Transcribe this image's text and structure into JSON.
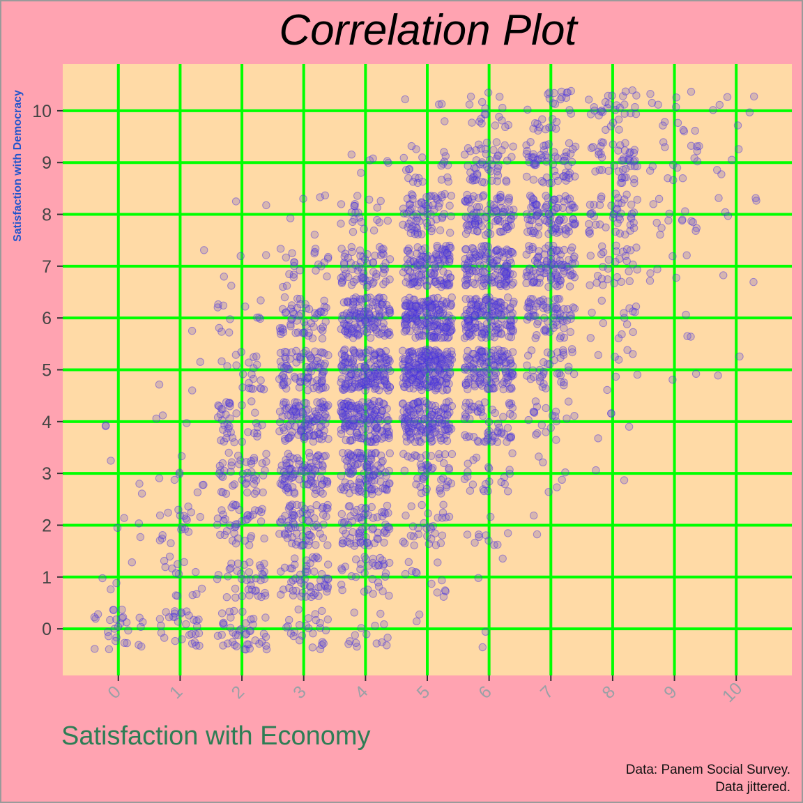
{
  "chart_data": {
    "type": "scatter",
    "title": "Correlation Plot",
    "xlabel": "Satisfaction with Economy",
    "ylabel": "Satisfaction with Democracy",
    "caption": [
      "Data: Panem Social Survey.",
      "Data jittered."
    ],
    "x_ticks": [
      "0",
      "1",
      "2",
      "3",
      "4",
      "5",
      "6",
      "7",
      "8",
      "9",
      "10"
    ],
    "y_ticks": [
      "0",
      "1",
      "2",
      "3",
      "4",
      "5",
      "6",
      "7",
      "8",
      "9",
      "10"
    ],
    "xlim": [
      -0.9,
      10.9
    ],
    "ylim": [
      -0.9,
      10.9
    ],
    "jittered": true,
    "grid": true,
    "colors": {
      "background": "#ffa3b1",
      "panel": "#ffdaa6",
      "grid": "#00ff00",
      "points": "#0000ff",
      "point_opacity": 0.22
    },
    "point_counts": {
      "x": [
        0,
        1,
        2,
        3,
        4,
        5,
        6,
        7,
        8,
        9,
        10
      ],
      "y": [
        0,
        1,
        2,
        3,
        4,
        5,
        6,
        7,
        8,
        9,
        10
      ],
      "counts": [
        [
          28,
          30,
          42,
          26,
          15,
          2,
          2,
          0,
          0,
          0,
          0
        ],
        [
          4,
          14,
          38,
          54,
          34,
          12,
          2,
          0,
          0,
          0,
          0
        ],
        [
          4,
          18,
          40,
          70,
          70,
          30,
          10,
          2,
          0,
          0,
          0
        ],
        [
          3,
          8,
          44,
          90,
          105,
          45,
          22,
          6,
          2,
          0,
          0
        ],
        [
          2,
          3,
          38,
          110,
          150,
          145,
          60,
          20,
          4,
          0,
          0
        ],
        [
          0,
          3,
          22,
          85,
          160,
          210,
          130,
          38,
          8,
          2,
          2
        ],
        [
          0,
          1,
          12,
          55,
          130,
          180,
          150,
          70,
          14,
          3,
          0
        ],
        [
          0,
          1,
          4,
          22,
          65,
          120,
          130,
          95,
          30,
          6,
          2
        ],
        [
          0,
          0,
          2,
          5,
          22,
          70,
          90,
          90,
          45,
          14,
          5
        ],
        [
          0,
          0,
          0,
          0,
          6,
          22,
          50,
          60,
          45,
          15,
          4
        ],
        [
          0,
          0,
          0,
          0,
          0,
          4,
          18,
          28,
          30,
          12,
          6
        ]
      ]
    }
  }
}
